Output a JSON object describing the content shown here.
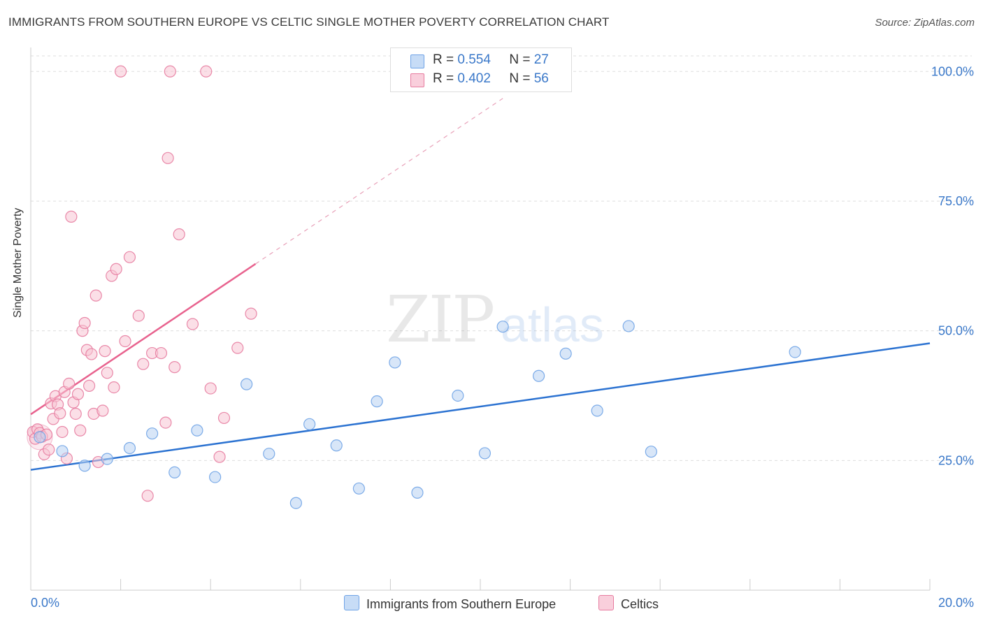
{
  "title": "IMMIGRANTS FROM SOUTHERN EUROPE VS CELTIC SINGLE MOTHER POVERTY CORRELATION CHART",
  "source": "Source: ZipAtlas.com",
  "watermark": {
    "zip": "ZIP",
    "atlas": "atlas"
  },
  "legend": {
    "r_label": "R =",
    "n_label": "N =",
    "series": [
      {
        "name": "Immigrants from Southern Europe",
        "r": "0.554",
        "n": "27",
        "color": "#6fa3e6",
        "fill": "#b8d1f3"
      },
      {
        "name": "Celtics",
        "r": "0.402",
        "n": "56",
        "color": "#e77ca0",
        "fill": "#f7c4d4"
      }
    ]
  },
  "chart_data": {
    "type": "scatter",
    "title": "IMMIGRANTS FROM SOUTHERN EUROPE VS CELTIC SINGLE MOTHER POVERTY CORRELATION CHART",
    "xlabel": "",
    "ylabel": "Single Mother Poverty",
    "xlim": [
      0,
      20
    ],
    "ylim": [
      0,
      103
    ],
    "x_tick_labels": [
      "0.0%",
      "20.0%"
    ],
    "y_ticks": [
      25,
      50,
      75,
      100
    ],
    "y_tick_labels": [
      "25.0%",
      "50.0%",
      "75.0%",
      "100.0%"
    ],
    "grid": true,
    "series": [
      {
        "name": "Immigrants from Southern Europe",
        "color": "#6fa3e6",
        "points": [
          [
            0.2,
            29.5
          ],
          [
            1.2,
            24.0
          ],
          [
            0.7,
            26.8
          ],
          [
            1.7,
            25.3
          ],
          [
            2.2,
            27.4
          ],
          [
            2.7,
            30.2
          ],
          [
            3.2,
            22.7
          ],
          [
            3.7,
            30.8
          ],
          [
            4.1,
            21.8
          ],
          [
            4.8,
            39.7
          ],
          [
            5.3,
            26.3
          ],
          [
            5.9,
            16.8
          ],
          [
            6.2,
            32.0
          ],
          [
            6.8,
            27.9
          ],
          [
            7.3,
            19.6
          ],
          [
            7.7,
            36.4
          ],
          [
            8.1,
            43.9
          ],
          [
            8.6,
            18.8
          ],
          [
            9.5,
            37.5
          ],
          [
            10.1,
            26.4
          ],
          [
            10.5,
            50.8
          ],
          [
            11.3,
            41.3
          ],
          [
            11.9,
            45.6
          ],
          [
            12.6,
            34.6
          ],
          [
            13.3,
            50.9
          ],
          [
            13.8,
            26.7
          ],
          [
            17.0,
            45.9
          ]
        ],
        "trend": {
          "x": [
            0,
            20
          ],
          "y": [
            23.2,
            47.6
          ]
        }
      },
      {
        "name": "Celtics",
        "color": "#e77ca0",
        "points": [
          [
            0.05,
            30.5
          ],
          [
            0.1,
            29.2
          ],
          [
            0.15,
            31.0
          ],
          [
            0.2,
            30.3
          ],
          [
            0.25,
            29.6
          ],
          [
            0.3,
            26.2
          ],
          [
            0.35,
            30.0
          ],
          [
            0.4,
            27.1
          ],
          [
            0.45,
            36.0
          ],
          [
            0.5,
            33.0
          ],
          [
            0.55,
            37.4
          ],
          [
            0.6,
            35.8
          ],
          [
            0.65,
            34.1
          ],
          [
            0.7,
            30.5
          ],
          [
            0.75,
            38.2
          ],
          [
            0.8,
            25.4
          ],
          [
            0.85,
            39.8
          ],
          [
            0.9,
            72.0
          ],
          [
            0.95,
            36.2
          ],
          [
            1.0,
            34.0
          ],
          [
            1.05,
            37.8
          ],
          [
            1.1,
            30.8
          ],
          [
            1.15,
            50.0
          ],
          [
            1.2,
            51.5
          ],
          [
            1.25,
            46.3
          ],
          [
            1.3,
            39.4
          ],
          [
            1.35,
            45.5
          ],
          [
            1.4,
            34.0
          ],
          [
            1.45,
            56.8
          ],
          [
            1.5,
            24.7
          ],
          [
            1.6,
            34.6
          ],
          [
            1.65,
            46.1
          ],
          [
            1.7,
            41.9
          ],
          [
            1.8,
            60.6
          ],
          [
            1.85,
            39.1
          ],
          [
            1.9,
            61.9
          ],
          [
            2.0,
            100.0
          ],
          [
            2.1,
            48.0
          ],
          [
            2.2,
            64.2
          ],
          [
            2.4,
            52.9
          ],
          [
            2.5,
            43.6
          ],
          [
            2.6,
            18.2
          ],
          [
            2.7,
            45.7
          ],
          [
            2.9,
            45.7
          ],
          [
            3.0,
            32.3
          ],
          [
            3.05,
            83.3
          ],
          [
            3.1,
            100.0
          ],
          [
            3.2,
            43.0
          ],
          [
            3.3,
            68.6
          ],
          [
            3.6,
            51.3
          ],
          [
            3.9,
            100.0
          ],
          [
            4.0,
            38.9
          ],
          [
            4.2,
            25.7
          ],
          [
            4.3,
            33.2
          ],
          [
            4.6,
            46.7
          ],
          [
            4.9,
            53.3
          ]
        ],
        "trend": {
          "x": [
            0,
            5.0
          ],
          "y": [
            33.9,
            62.9
          ]
        },
        "trend_dashed": {
          "x": [
            5.0,
            10.5
          ],
          "y": [
            62.9,
            94.8
          ]
        }
      }
    ]
  }
}
